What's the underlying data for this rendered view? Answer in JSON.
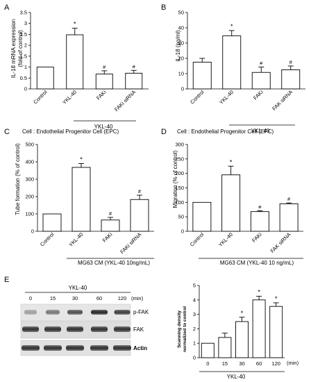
{
  "panels": {
    "A": {
      "letter": "A",
      "ylabel": "IL-18 mRNA expression",
      "ylabel2": "(fold of control)",
      "group_label": "YKL-40"
    },
    "B": {
      "letter": "B",
      "ylabel": "IL-18 (pg/ml)",
      "group_label": "YKL-40"
    },
    "C": {
      "letter": "C",
      "header": "Cell : Endothelial Progenitor Cell (EPC)",
      "ylabel": "Tube formation (% of control)",
      "group_label": "MG63 CM (YKL-40 10ng/mL)"
    },
    "D": {
      "letter": "D",
      "header": "Cell : Endothelial Progenitor Cell (EPC)",
      "ylabel": "Migration (% of control)",
      "group_label": "MG63 CM (YKL-40 10 ng/mL)"
    },
    "E": {
      "letter": "E",
      "blot_group": "YKL-40",
      "blot_times": [
        "0",
        "15",
        "30",
        "60",
        "120"
      ],
      "blot_unit": "(min)",
      "bands": [
        "p-FAK",
        "FAK",
        "Actin"
      ],
      "ylabel": "Scanning density",
      "ylabel2": "normalized to control",
      "x_unit": "(min)",
      "group_label": "YKL-40"
    }
  },
  "chart_data": [
    {
      "panel": "A",
      "type": "bar",
      "categories": [
        "Control",
        "YKL-40",
        "FAKi",
        "FAKi siRNA"
      ],
      "values": [
        1.0,
        2.48,
        0.68,
        0.72
      ],
      "errors": [
        0,
        0.3,
        0.15,
        0.13
      ],
      "annotations": [
        "",
        "*",
        "#",
        "#"
      ],
      "ylim": [
        0,
        3.5
      ],
      "yticks": [
        "0",
        "0.5",
        "1",
        "1.5",
        "2",
        "2.5",
        "3",
        "3.5"
      ]
    },
    {
      "panel": "B",
      "type": "bar",
      "categories": [
        "Control",
        "YKL-40",
        "FAKi",
        "FAK siRNA"
      ],
      "values": [
        17.5,
        34.7,
        10.8,
        12.5
      ],
      "errors": [
        2.5,
        3.5,
        3.5,
        2.5
      ],
      "annotations": [
        "",
        "*",
        "#",
        "#"
      ],
      "ylim": [
        0,
        50
      ],
      "yticks": [
        "0",
        "10",
        "20",
        "30",
        "40",
        "50"
      ]
    },
    {
      "panel": "C",
      "type": "bar",
      "categories": [
        "Control",
        "YKL-40",
        "FAKi",
        "FAKi siRNA"
      ],
      "values": [
        100,
        368,
        65,
        183
      ],
      "errors": [
        0,
        22,
        15,
        25
      ],
      "annotations": [
        "",
        "*",
        "#",
        "#"
      ],
      "ylim": [
        0,
        500
      ],
      "yticks": [
        "0",
        "100",
        "200",
        "300",
        "400",
        "500"
      ]
    },
    {
      "panel": "D",
      "type": "bar",
      "categories": [
        "Control",
        "YKL-40",
        "FAKi",
        "FAK siRNA"
      ],
      "values": [
        100,
        195,
        68,
        95
      ],
      "errors": [
        0,
        30,
        3,
        3
      ],
      "annotations": [
        "",
        "*",
        "#",
        "#"
      ],
      "ylim": [
        0,
        300
      ],
      "yticks": [
        "0",
        "50",
        "100",
        "150",
        "200",
        "250",
        "300"
      ]
    },
    {
      "panel": "E",
      "type": "bar",
      "categories": [
        "0",
        "15",
        "30",
        "60",
        "120"
      ],
      "values": [
        1.0,
        1.4,
        2.5,
        4.0,
        3.55
      ],
      "errors": [
        0,
        0.3,
        0.3,
        0.25,
        0.25
      ],
      "annotations": [
        "",
        "",
        "*",
        "*",
        "*"
      ],
      "ylim": [
        0,
        5
      ],
      "yticks": [
        "0",
        "1",
        "2",
        "3",
        "4",
        "5"
      ]
    }
  ]
}
